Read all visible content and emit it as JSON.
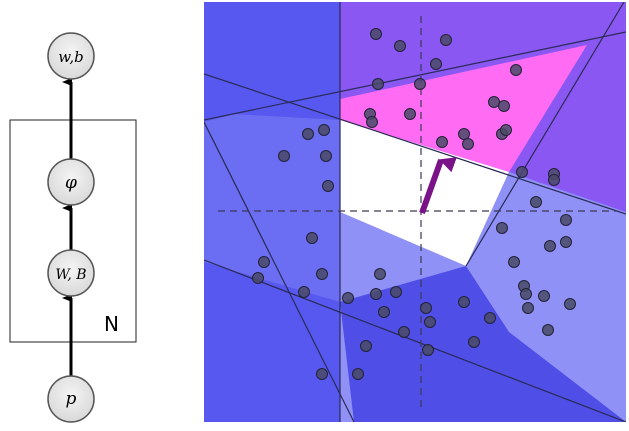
{
  "graphical_model": {
    "nodes": {
      "top": "w,b",
      "phi": "φ",
      "mid": "W, B",
      "bottom": "p"
    },
    "plate_label": "N"
  },
  "scene": {
    "colors": {
      "background": "#5a5cf0",
      "magenta_region": "#ff6cf3",
      "violet_region": "#8a57f3",
      "light_region": "#8f91f6",
      "deep_region": "#4f4fe8",
      "white_region": "#ffffff",
      "point_fill": "#4a4a66",
      "arrow": "#7b1388"
    },
    "points_count": 57
  }
}
